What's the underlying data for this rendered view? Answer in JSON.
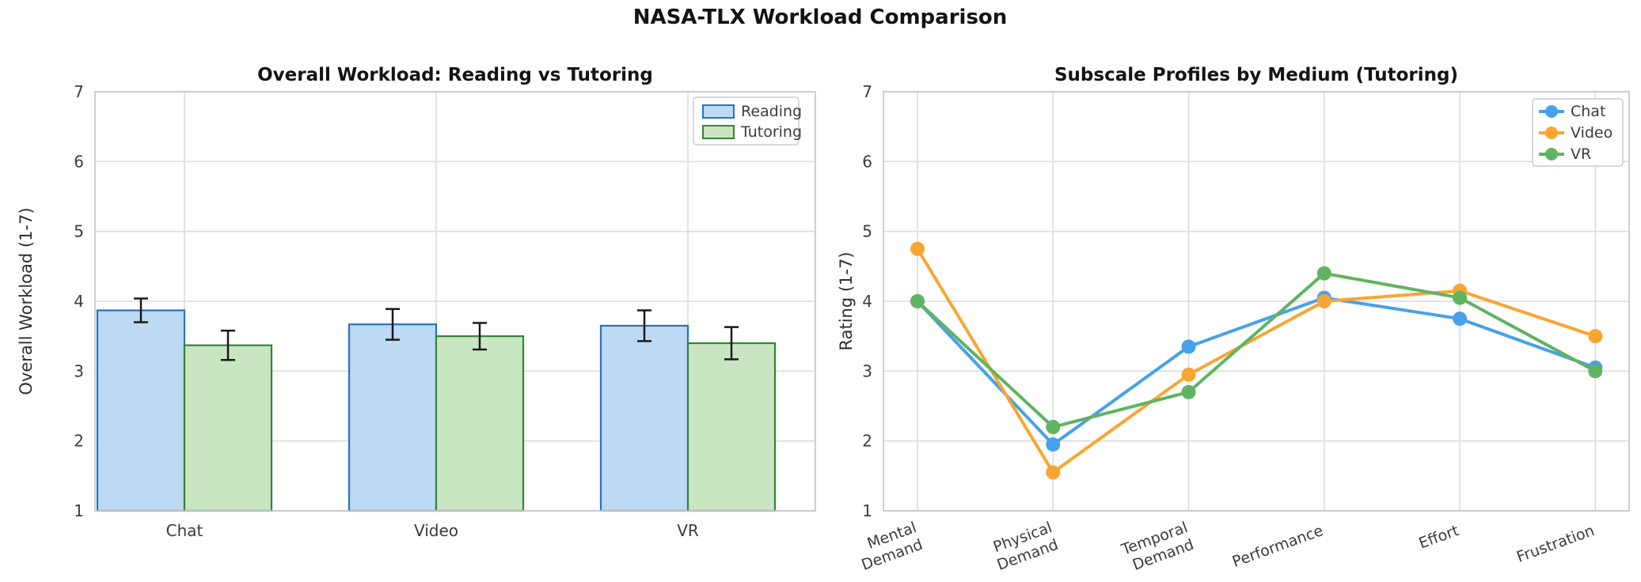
{
  "figure_title": "NASA-TLX Workload Comparison",
  "chart_data": [
    {
      "type": "bar",
      "title": "Overall Workload: Reading vs Tutoring",
      "ylabel": "Overall Workload (1-7)",
      "xlabel": "",
      "categories": [
        "Chat",
        "Video",
        "VR"
      ],
      "series": [
        {
          "name": "Reading",
          "values": [
            3.87,
            3.67,
            3.65
          ],
          "errors": [
            0.17,
            0.22,
            0.22
          ],
          "fill": "#BDD9F3",
          "edge": "#2374C4"
        },
        {
          "name": "Tutoring",
          "values": [
            3.37,
            3.5,
            3.4
          ],
          "errors": [
            0.21,
            0.19,
            0.23
          ],
          "fill": "#C9E6C3",
          "edge": "#358437"
        }
      ],
      "ylim": [
        1,
        7
      ],
      "yticks": [
        1,
        2,
        3,
        4,
        5,
        6,
        7
      ],
      "grid": true,
      "legend_position": "upper right",
      "error_bar_color": "#1a1a1a"
    },
    {
      "type": "line",
      "title": "Subscale Profiles by Medium (Tutoring)",
      "ylabel": "Rating (1-7)",
      "xlabel": "",
      "categories": [
        {
          "label": "Mental Demand",
          "lines": [
            "Mental",
            "Demand"
          ]
        },
        {
          "label": "Physical Demand",
          "lines": [
            "Physical",
            "Demand"
          ]
        },
        {
          "label": "Temporal Demand",
          "lines": [
            "Temporal",
            "Demand"
          ]
        },
        {
          "label": "Performance",
          "lines": [
            "Performance"
          ]
        },
        {
          "label": "Effort",
          "lines": [
            "Effort"
          ]
        },
        {
          "label": "Frustration",
          "lines": [
            "Frustration"
          ]
        }
      ],
      "series": [
        {
          "name": "Chat",
          "values": [
            4.0,
            1.95,
            3.35,
            4.05,
            3.75,
            3.05
          ],
          "color": "#47A1EB"
        },
        {
          "name": "Video",
          "values": [
            4.75,
            1.55,
            2.95,
            4.0,
            4.15,
            3.5
          ],
          "color": "#FAA532"
        },
        {
          "name": "VR",
          "values": [
            4.0,
            2.2,
            2.7,
            4.4,
            4.05,
            3.0
          ],
          "color": "#60B360"
        }
      ],
      "ylim": [
        1,
        7
      ],
      "yticks": [
        1,
        2,
        3,
        4,
        5,
        6,
        7
      ],
      "grid": true,
      "legend_position": "upper right",
      "tick_rotation_deg": 20
    }
  ]
}
